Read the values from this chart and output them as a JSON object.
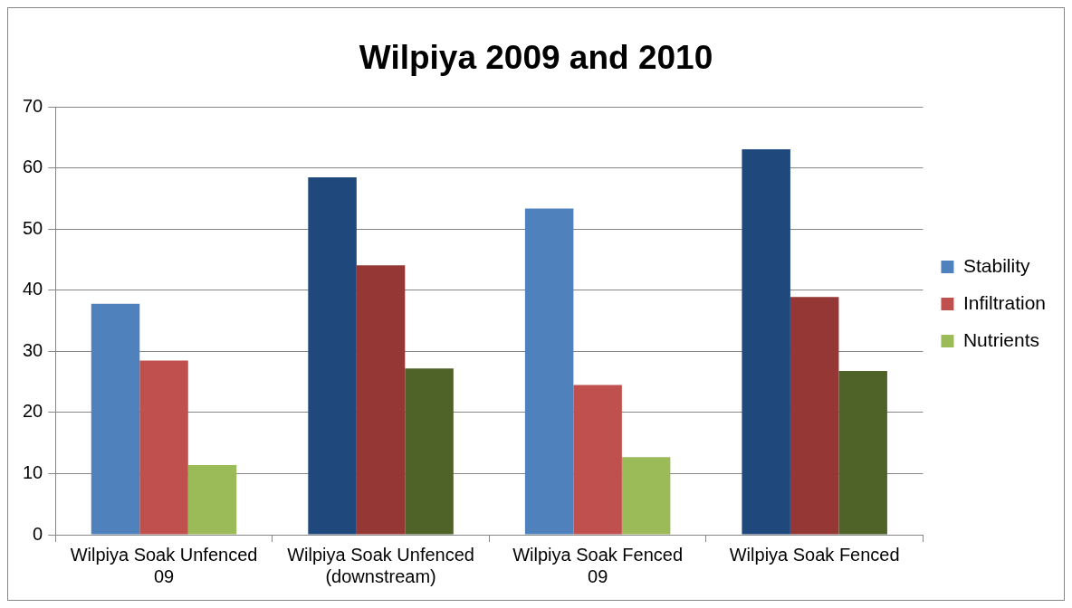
{
  "chart_data": {
    "type": "bar",
    "title": "Wilpiya 2009 and 2010",
    "categories": [
      "Wilpiya Soak Unfenced 09",
      "Wilpiya Soak Unfenced (downstream)",
      "Wilpiya Soak Fenced 09",
      "Wilpiya Soak Fenced"
    ],
    "series": [
      {
        "name": "Stability",
        "color": "#4f81bd",
        "colors": [
          "#4f81bd",
          "#1f497d",
          "#4f81bd",
          "#1f497d"
        ],
        "values": [
          37.8,
          58.5,
          53.4,
          63.1
        ]
      },
      {
        "name": "Infiltration",
        "color": "#c0504d",
        "colors": [
          "#c0504d",
          "#953735",
          "#c0504d",
          "#953735"
        ],
        "values": [
          28.5,
          44.1,
          24.5,
          38.9
        ]
      },
      {
        "name": "Nutrients",
        "color": "#9bbb59",
        "colors": [
          "#9bbb59",
          "#4f6228",
          "#9bbb59",
          "#4f6228"
        ],
        "values": [
          11.4,
          27.2,
          12.7,
          26.8
        ]
      }
    ],
    "ylim": [
      0,
      70
    ],
    "yticks": [
      0,
      10,
      20,
      30,
      40,
      50,
      60,
      70
    ],
    "grid": "y",
    "legend": "right"
  }
}
